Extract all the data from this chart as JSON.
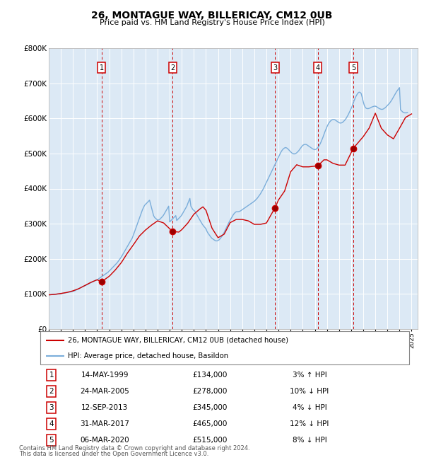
{
  "title": "26, MONTAGUE WAY, BILLERICAY, CM12 0UB",
  "subtitle": "Price paid vs. HM Land Registry's House Price Index (HPI)",
  "legend_line1": "26, MONTAGUE WAY, BILLERICAY, CM12 0UB (detached house)",
  "legend_line2": "HPI: Average price, detached house, Basildon",
  "footer1": "Contains HM Land Registry data © Crown copyright and database right 2024.",
  "footer2": "This data is licensed under the Open Government Licence v3.0.",
  "ylim": [
    0,
    800000
  ],
  "yticks": [
    0,
    100000,
    200000,
    300000,
    400000,
    500000,
    600000,
    700000,
    800000
  ],
  "ytick_labels": [
    "£0",
    "£100K",
    "£200K",
    "£300K",
    "£400K",
    "£500K",
    "£600K",
    "£700K",
    "£800K"
  ],
  "xlim_start": 1995.0,
  "xlim_end": 2025.5,
  "background_color": "#dce9f5",
  "hpi_color": "#7aadda",
  "price_color": "#cc0000",
  "transactions": [
    {
      "num": 1,
      "date": "14-MAY-1999",
      "year": 1999.37,
      "price": 134000,
      "pct": "3%",
      "dir": "↑"
    },
    {
      "num": 2,
      "date": "24-MAR-2005",
      "year": 2005.23,
      "price": 278000,
      "pct": "10%",
      "dir": "↓"
    },
    {
      "num": 3,
      "date": "12-SEP-2013",
      "year": 2013.7,
      "price": 345000,
      "pct": "4%",
      "dir": "↓"
    },
    {
      "num": 4,
      "date": "31-MAR-2017",
      "year": 2017.25,
      "price": 465000,
      "pct": "12%",
      "dir": "↓"
    },
    {
      "num": 5,
      "date": "06-MAR-2020",
      "year": 2020.18,
      "price": 515000,
      "pct": "8%",
      "dir": "↓"
    }
  ],
  "hpi_data_x": [
    1995.0,
    1995.083,
    1995.167,
    1995.25,
    1995.333,
    1995.417,
    1995.5,
    1995.583,
    1995.667,
    1995.75,
    1995.833,
    1995.917,
    1996.0,
    1996.083,
    1996.167,
    1996.25,
    1996.333,
    1996.417,
    1996.5,
    1996.583,
    1996.667,
    1996.75,
    1996.833,
    1996.917,
    1997.0,
    1997.083,
    1997.167,
    1997.25,
    1997.333,
    1997.417,
    1997.5,
    1997.583,
    1997.667,
    1997.75,
    1997.833,
    1997.917,
    1998.0,
    1998.083,
    1998.167,
    1998.25,
    1998.333,
    1998.417,
    1998.5,
    1998.583,
    1998.667,
    1998.75,
    1998.833,
    1998.917,
    1999.0,
    1999.083,
    1999.167,
    1999.25,
    1999.333,
    1999.417,
    1999.5,
    1999.583,
    1999.667,
    1999.75,
    1999.833,
    1999.917,
    2000.0,
    2000.083,
    2000.167,
    2000.25,
    2000.333,
    2000.417,
    2000.5,
    2000.583,
    2000.667,
    2000.75,
    2000.833,
    2000.917,
    2001.0,
    2001.083,
    2001.167,
    2001.25,
    2001.333,
    2001.417,
    2001.5,
    2001.583,
    2001.667,
    2001.75,
    2001.833,
    2001.917,
    2002.0,
    2002.083,
    2002.167,
    2002.25,
    2002.333,
    2002.417,
    2002.5,
    2002.583,
    2002.667,
    2002.75,
    2002.833,
    2002.917,
    2003.0,
    2003.083,
    2003.167,
    2003.25,
    2003.333,
    2003.417,
    2003.5,
    2003.583,
    2003.667,
    2003.75,
    2003.833,
    2003.917,
    2004.0,
    2004.083,
    2004.167,
    2004.25,
    2004.333,
    2004.417,
    2004.5,
    2004.583,
    2004.667,
    2004.75,
    2004.833,
    2004.917,
    2005.0,
    2005.083,
    2005.167,
    2005.25,
    2005.333,
    2005.417,
    2005.5,
    2005.583,
    2005.667,
    2005.75,
    2005.833,
    2005.917,
    2006.0,
    2006.083,
    2006.167,
    2006.25,
    2006.333,
    2006.417,
    2006.5,
    2006.583,
    2006.667,
    2006.75,
    2006.833,
    2006.917,
    2007.0,
    2007.083,
    2007.167,
    2007.25,
    2007.333,
    2007.417,
    2007.5,
    2007.583,
    2007.667,
    2007.75,
    2007.833,
    2007.917,
    2008.0,
    2008.083,
    2008.167,
    2008.25,
    2008.333,
    2008.417,
    2008.5,
    2008.583,
    2008.667,
    2008.75,
    2008.833,
    2008.917,
    2009.0,
    2009.083,
    2009.167,
    2009.25,
    2009.333,
    2009.417,
    2009.5,
    2009.583,
    2009.667,
    2009.75,
    2009.833,
    2009.917,
    2010.0,
    2010.083,
    2010.167,
    2010.25,
    2010.333,
    2010.417,
    2010.5,
    2010.583,
    2010.667,
    2010.75,
    2010.833,
    2010.917,
    2011.0,
    2011.083,
    2011.167,
    2011.25,
    2011.333,
    2011.417,
    2011.5,
    2011.583,
    2011.667,
    2011.75,
    2011.833,
    2011.917,
    2012.0,
    2012.083,
    2012.167,
    2012.25,
    2012.333,
    2012.417,
    2012.5,
    2012.583,
    2012.667,
    2012.75,
    2012.833,
    2012.917,
    2013.0,
    2013.083,
    2013.167,
    2013.25,
    2013.333,
    2013.417,
    2013.5,
    2013.583,
    2013.667,
    2013.75,
    2013.833,
    2013.917,
    2014.0,
    2014.083,
    2014.167,
    2014.25,
    2014.333,
    2014.417,
    2014.5,
    2014.583,
    2014.667,
    2014.75,
    2014.833,
    2014.917,
    2015.0,
    2015.083,
    2015.167,
    2015.25,
    2015.333,
    2015.417,
    2015.5,
    2015.583,
    2015.667,
    2015.75,
    2015.833,
    2015.917,
    2016.0,
    2016.083,
    2016.167,
    2016.25,
    2016.333,
    2016.417,
    2016.5,
    2016.583,
    2016.667,
    2016.75,
    2016.833,
    2016.917,
    2017.0,
    2017.083,
    2017.167,
    2017.25,
    2017.333,
    2017.417,
    2017.5,
    2017.583,
    2017.667,
    2017.75,
    2017.833,
    2017.917,
    2018.0,
    2018.083,
    2018.167,
    2018.25,
    2018.333,
    2018.417,
    2018.5,
    2018.583,
    2018.667,
    2018.75,
    2018.833,
    2018.917,
    2019.0,
    2019.083,
    2019.167,
    2019.25,
    2019.333,
    2019.417,
    2019.5,
    2019.583,
    2019.667,
    2019.75,
    2019.833,
    2019.917,
    2020.0,
    2020.083,
    2020.167,
    2020.25,
    2020.333,
    2020.417,
    2020.5,
    2020.583,
    2020.667,
    2020.75,
    2020.833,
    2020.917,
    2021.0,
    2021.083,
    2021.167,
    2021.25,
    2021.333,
    2021.417,
    2021.5,
    2021.583,
    2021.667,
    2021.75,
    2021.833,
    2021.917,
    2022.0,
    2022.083,
    2022.167,
    2022.25,
    2022.333,
    2022.417,
    2022.5,
    2022.583,
    2022.667,
    2022.75,
    2022.833,
    2022.917,
    2023.0,
    2023.083,
    2023.167,
    2023.25,
    2023.333,
    2023.417,
    2023.5,
    2023.583,
    2023.667,
    2023.75,
    2023.833,
    2023.917,
    2024.0,
    2024.083,
    2024.167,
    2024.25,
    2024.333,
    2024.417,
    2024.5,
    2024.583,
    2024.667,
    2024.75,
    2024.833,
    2024.917,
    2025.0
  ],
  "hpi_data_y": [
    97000,
    97500,
    97800,
    98000,
    98200,
    98500,
    98700,
    99000,
    99200,
    99500,
    99700,
    100000,
    100500,
    101000,
    101500,
    102000,
    102500,
    103000,
    103500,
    104000,
    104500,
    105000,
    105800,
    106500,
    107000,
    108000,
    109000,
    110500,
    112000,
    113500,
    115000,
    116500,
    118000,
    119500,
    121000,
    122000,
    123000,
    124500,
    126000,
    127500,
    129000,
    130500,
    132000,
    133500,
    135000,
    136500,
    138000,
    139000,
    140000,
    142000,
    144000,
    146000,
    148000,
    150000,
    152000,
    154000,
    156000,
    158000,
    160000,
    162000,
    165000,
    168000,
    171000,
    174000,
    177000,
    180000,
    183000,
    186000,
    189000,
    193000,
    197000,
    201000,
    205000,
    210000,
    215000,
    220000,
    225000,
    230000,
    235000,
    240000,
    245000,
    250000,
    255000,
    260000,
    268000,
    276000,
    284000,
    292000,
    300000,
    308000,
    316000,
    324000,
    332000,
    340000,
    346000,
    352000,
    355000,
    358000,
    361000,
    364000,
    367000,
    356000,
    345000,
    334000,
    323000,
    318000,
    315000,
    313000,
    310000,
    311000,
    312000,
    315000,
    318000,
    321000,
    325000,
    330000,
    335000,
    340000,
    345000,
    350000,
    305000,
    308000,
    311000,
    314000,
    317000,
    320000,
    323000,
    309000,
    312000,
    315000,
    318000,
    321000,
    325000,
    330000,
    335000,
    340000,
    345000,
    350000,
    358000,
    365000,
    372000,
    350000,
    345000,
    340000,
    338000,
    335000,
    330000,
    325000,
    320000,
    315000,
    310000,
    305000,
    300000,
    296000,
    292000,
    289000,
    285000,
    278000,
    273000,
    269000,
    265000,
    261000,
    258000,
    256000,
    254000,
    252000,
    251000,
    251000,
    252000,
    254000,
    257000,
    261000,
    265000,
    270000,
    275000,
    281000,
    287000,
    293000,
    299000,
    305000,
    310000,
    315000,
    320000,
    325000,
    329000,
    332000,
    334000,
    334000,
    334000,
    335000,
    336000,
    338000,
    340000,
    342000,
    344000,
    346000,
    348000,
    350000,
    352000,
    354000,
    356000,
    358000,
    360000,
    362000,
    364000,
    367000,
    370000,
    373000,
    377000,
    381000,
    385000,
    390000,
    395000,
    400000,
    406000,
    412000,
    418000,
    424000,
    430000,
    436000,
    442000,
    448000,
    454000,
    460000,
    466000,
    472000,
    478000,
    484000,
    490000,
    496000,
    502000,
    507000,
    511000,
    514000,
    516000,
    517000,
    516000,
    514000,
    511000,
    508000,
    505000,
    502000,
    500000,
    499000,
    499000,
    500000,
    502000,
    505000,
    508000,
    512000,
    516000,
    520000,
    523000,
    525000,
    526000,
    526000,
    525000,
    523000,
    521000,
    519000,
    517000,
    515000,
    513000,
    512000,
    511000,
    512000,
    514000,
    517000,
    521000,
    526000,
    532000,
    539000,
    546000,
    554000,
    562000,
    569000,
    576000,
    582000,
    587000,
    591000,
    594000,
    596000,
    597000,
    597000,
    596000,
    594000,
    592000,
    590000,
    588000,
    587000,
    587000,
    588000,
    590000,
    593000,
    596000,
    600000,
    605000,
    610000,
    616000,
    622000,
    628000,
    635000,
    643000,
    651000,
    658000,
    664000,
    669000,
    673000,
    675000,
    674000,
    671000,
    660000,
    648000,
    638000,
    632000,
    629000,
    628000,
    628000,
    629000,
    630000,
    632000,
    633000,
    634000,
    635000,
    635000,
    634000,
    632000,
    630000,
    628000,
    627000,
    626000,
    626000,
    627000,
    629000,
    631000,
    634000,
    637000,
    640000,
    643000,
    647000,
    651000,
    656000,
    661000,
    666000,
    671000,
    676000,
    680000,
    684000,
    688000,
    625000,
    622000,
    619000,
    617000,
    616000,
    616000,
    616000,
    617000
  ],
  "price_data_x": [
    1995.0,
    1995.5,
    1996.0,
    1996.5,
    1997.0,
    1997.5,
    1998.0,
    1998.5,
    1999.0,
    1999.37,
    1999.75,
    2000.0,
    2000.5,
    2001.0,
    2001.5,
    2002.0,
    2002.5,
    2003.0,
    2003.5,
    2004.0,
    2004.5,
    2005.23,
    2005.75,
    2006.0,
    2006.5,
    2007.0,
    2007.5,
    2007.75,
    2008.0,
    2008.5,
    2009.0,
    2009.5,
    2010.0,
    2010.5,
    2011.0,
    2011.5,
    2012.0,
    2012.5,
    2013.0,
    2013.7,
    2014.0,
    2014.5,
    2015.0,
    2015.5,
    2016.0,
    2016.5,
    2017.25,
    2017.75,
    2018.0,
    2018.5,
    2019.0,
    2019.5,
    2020.18,
    2020.75,
    2021.0,
    2021.5,
    2022.0,
    2022.5,
    2023.0,
    2023.5,
    2024.0,
    2024.5,
    2025.0
  ],
  "price_data_y": [
    97000,
    98500,
    101000,
    104000,
    108500,
    115000,
    124000,
    133000,
    140000,
    134000,
    144000,
    150000,
    168000,
    189000,
    216000,
    240000,
    265000,
    282000,
    296000,
    308000,
    302000,
    278000,
    276000,
    283000,
    302000,
    327000,
    342000,
    348000,
    338000,
    287000,
    260000,
    270000,
    303000,
    312000,
    312000,
    308000,
    298000,
    298000,
    302000,
    345000,
    368000,
    393000,
    448000,
    468000,
    462000,
    462000,
    465000,
    482000,
    482000,
    472000,
    467000,
    467000,
    515000,
    538000,
    548000,
    573000,
    615000,
    572000,
    553000,
    542000,
    572000,
    603000,
    613000
  ]
}
